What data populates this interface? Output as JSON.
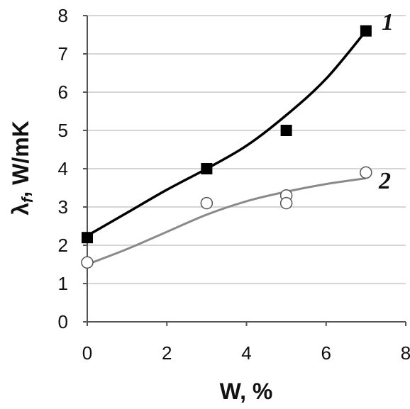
{
  "chart_data": {
    "type": "line",
    "xlabel": "W, %",
    "ylabel_main": "λ",
    "ylabel_sub": "f",
    "ylabel_rest": ", W/mK",
    "xlim": [
      0,
      8
    ],
    "ylim": [
      0,
      8
    ],
    "x_ticks": [
      "0",
      "2",
      "4",
      "6",
      "8"
    ],
    "y_ticks": [
      "0",
      "1",
      "2",
      "3",
      "4",
      "5",
      "6",
      "7",
      "8"
    ],
    "grid": "horizontal",
    "colors": {
      "series1": "#000000",
      "series2": "#8a8a8a",
      "grid": "#c8c8c8"
    },
    "series": [
      {
        "label": "1",
        "marker": "filled-square",
        "points": [
          {
            "x": 0,
            "y": 2.2
          },
          {
            "x": 3,
            "y": 4.0
          },
          {
            "x": 5,
            "y": 5.0
          },
          {
            "x": 7,
            "y": 7.6
          }
        ],
        "curve": [
          [
            0,
            2.25
          ],
          [
            1,
            2.85
          ],
          [
            2,
            3.45
          ],
          [
            3,
            4.0
          ],
          [
            4,
            4.6
          ],
          [
            5,
            5.4
          ],
          [
            6,
            6.35
          ],
          [
            7,
            7.6
          ]
        ]
      },
      {
        "label": "2",
        "marker": "open-circle",
        "points": [
          {
            "x": 0,
            "y": 1.55
          },
          {
            "x": 3,
            "y": 3.1
          },
          {
            "x": 5,
            "y": 3.3
          },
          {
            "x": 5,
            "y": 3.1
          },
          {
            "x": 7,
            "y": 3.9
          }
        ],
        "curve": [
          [
            0,
            1.5
          ],
          [
            1,
            1.9
          ],
          [
            2,
            2.35
          ],
          [
            3,
            2.8
          ],
          [
            4,
            3.15
          ],
          [
            5,
            3.4
          ],
          [
            6,
            3.6
          ],
          [
            7,
            3.75
          ]
        ]
      }
    ]
  }
}
